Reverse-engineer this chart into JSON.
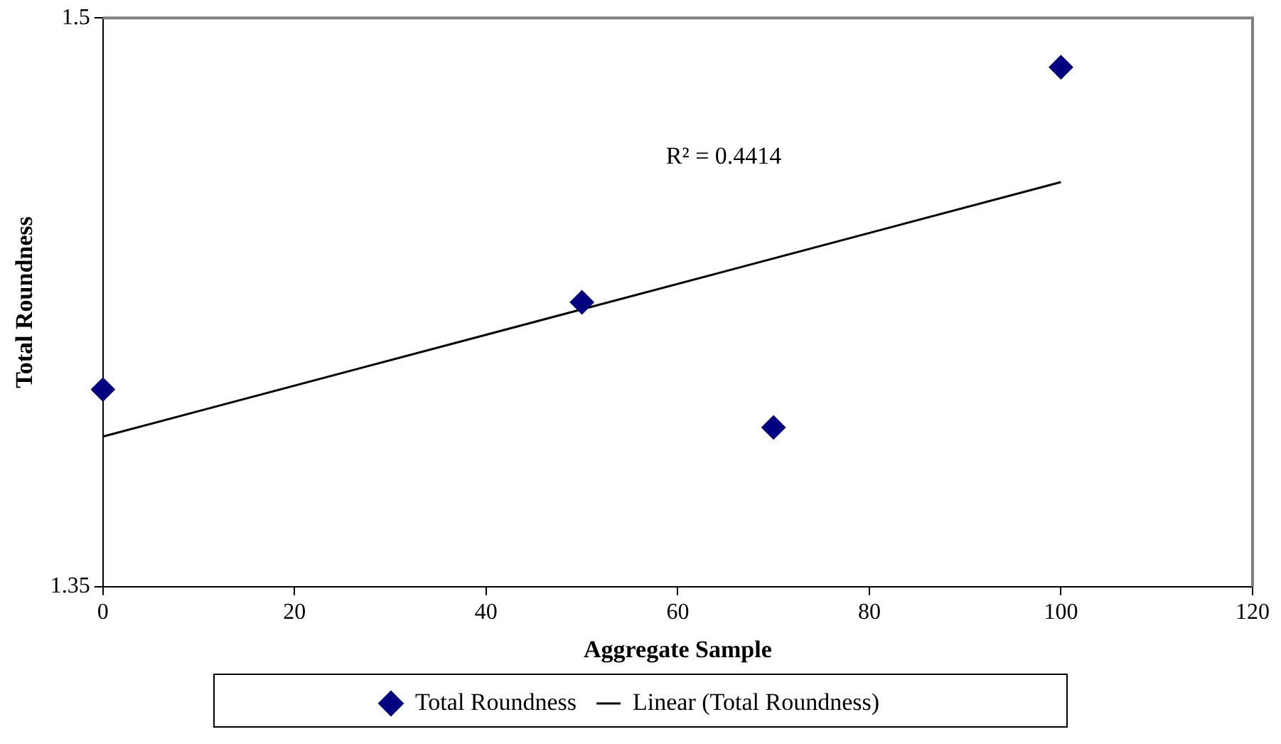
{
  "chart_data": {
    "type": "scatter",
    "xlabel": "Aggregate Sample",
    "ylabel": "Total Roundness",
    "x": [
      0,
      50,
      70,
      100
    ],
    "series": [
      {
        "name": "Total Roundness",
        "type": "scatter",
        "color": "#000080",
        "marker": "diamond",
        "values": [
          1.402,
          1.425,
          1.392,
          1.487
        ]
      },
      {
        "name": "Linear (Total Roundness)",
        "type": "line",
        "color": "#000000",
        "marker": "none",
        "line_style": "solid",
        "x": [
          0,
          100
        ],
        "values": [
          1.3896,
          1.4567
        ]
      }
    ],
    "annotations": [
      "R² = 0.4414"
    ],
    "xlim": [
      0,
      120
    ],
    "xticks": [
      0,
      20,
      40,
      60,
      80,
      100,
      120
    ],
    "ylim": [
      1.35,
      1.5
    ],
    "yticks": [
      1.35,
      1.5
    ],
    "grid": false,
    "legend": "bottom"
  }
}
